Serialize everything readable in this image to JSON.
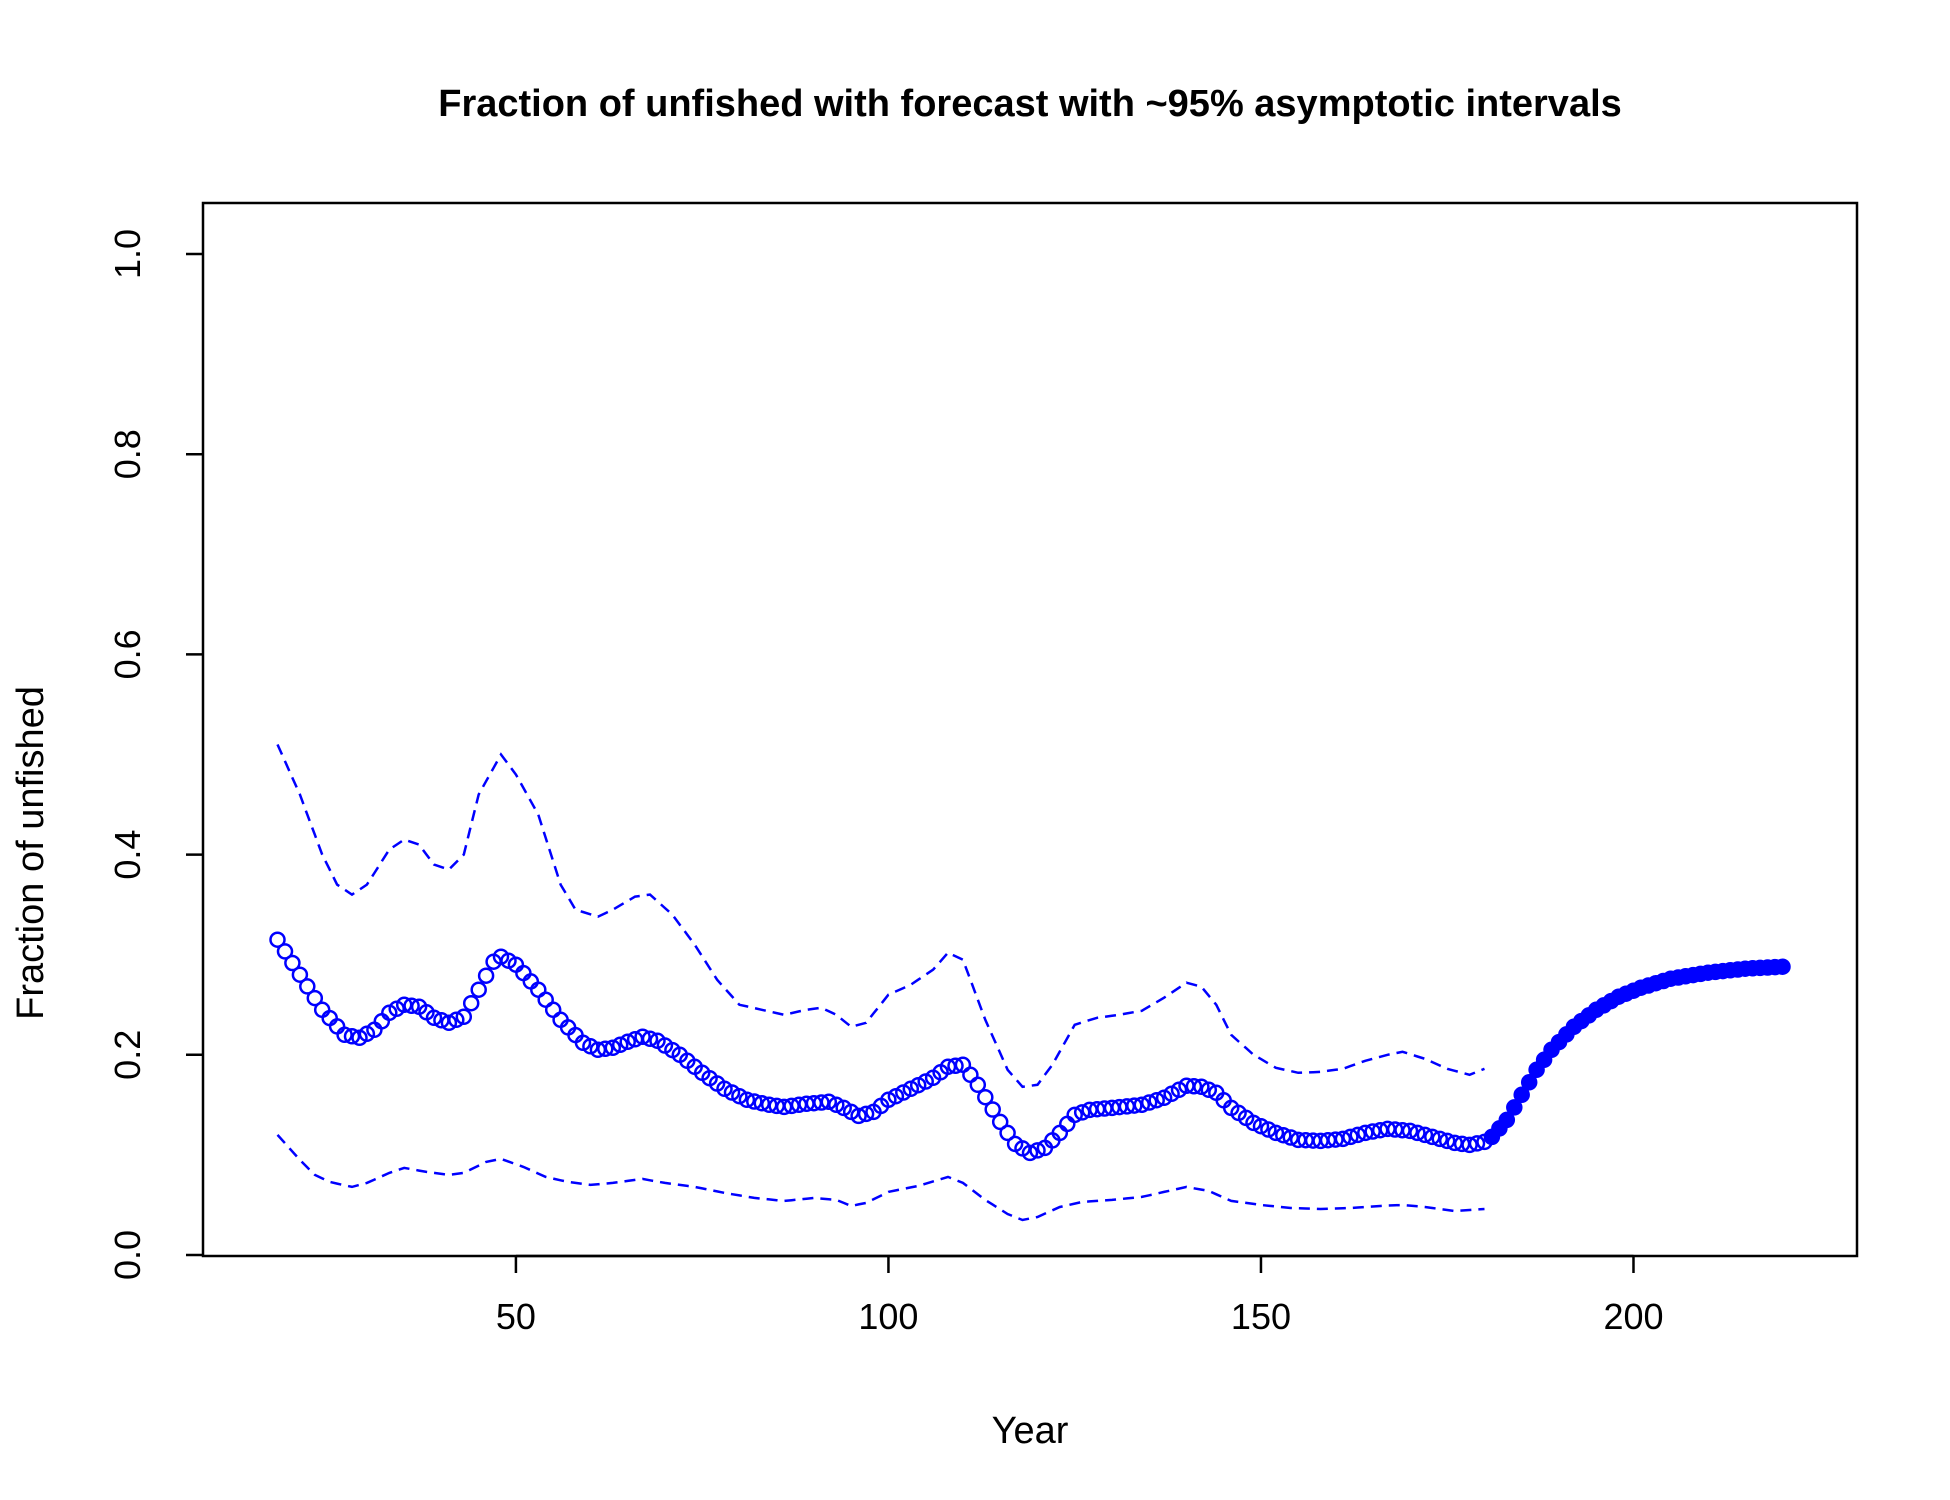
{
  "chart_data": {
    "type": "line",
    "title": "Fraction of unfished with forecast with ~95% asymptotic intervals",
    "xlabel": "Year",
    "ylabel": "Fraction of unfished",
    "xlim": [
      8,
      230
    ],
    "ylim": [
      0,
      1.05
    ],
    "x_ticks": [
      50,
      100,
      150,
      200
    ],
    "x_tick_labels": [
      "50",
      "100",
      "150",
      "200"
    ],
    "y_ticks": [
      0.0,
      0.2,
      0.4,
      0.6,
      0.8,
      1.0
    ],
    "y_tick_labels": [
      "0.0",
      "0.2",
      "0.4",
      "0.6",
      "0.8",
      "1.0"
    ],
    "grid": false,
    "colors": {
      "series": "#0000ff",
      "axis": "#000000"
    },
    "series": [
      {
        "style": "open-circles",
        "x_start": 18,
        "x_end": 180,
        "keypoints": [
          [
            18,
            0.315
          ],
          [
            21,
            0.28
          ],
          [
            24,
            0.245
          ],
          [
            27,
            0.22
          ],
          [
            29,
            0.217
          ],
          [
            31,
            0.225
          ],
          [
            33,
            0.242
          ],
          [
            35,
            0.25
          ],
          [
            37,
            0.248
          ],
          [
            39,
            0.237
          ],
          [
            41,
            0.232
          ],
          [
            43,
            0.238
          ],
          [
            45,
            0.265
          ],
          [
            47,
            0.293
          ],
          [
            48,
            0.298
          ],
          [
            50,
            0.29
          ],
          [
            53,
            0.265
          ],
          [
            56,
            0.235
          ],
          [
            59,
            0.212
          ],
          [
            61,
            0.205
          ],
          [
            63,
            0.207
          ],
          [
            65,
            0.213
          ],
          [
            67,
            0.218
          ],
          [
            69,
            0.214
          ],
          [
            72,
            0.2
          ],
          [
            75,
            0.182
          ],
          [
            78,
            0.166
          ],
          [
            81,
            0.155
          ],
          [
            84,
            0.15
          ],
          [
            86,
            0.148
          ],
          [
            89,
            0.151
          ],
          [
            92,
            0.153
          ],
          [
            94,
            0.147
          ],
          [
            96,
            0.139
          ],
          [
            98,
            0.143
          ],
          [
            100,
            0.155
          ],
          [
            103,
            0.166
          ],
          [
            106,
            0.177
          ],
          [
            108,
            0.188
          ],
          [
            110,
            0.19
          ],
          [
            112,
            0.17
          ],
          [
            115,
            0.133
          ],
          [
            117,
            0.111
          ],
          [
            119,
            0.102
          ],
          [
            121,
            0.107
          ],
          [
            123,
            0.122
          ],
          [
            125,
            0.14
          ],
          [
            127,
            0.145
          ],
          [
            130,
            0.147
          ],
          [
            134,
            0.15
          ],
          [
            137,
            0.157
          ],
          [
            140,
            0.169
          ],
          [
            142,
            0.168
          ],
          [
            144,
            0.162
          ],
          [
            146,
            0.147
          ],
          [
            149,
            0.132
          ],
          [
            152,
            0.122
          ],
          [
            155,
            0.115
          ],
          [
            158,
            0.114
          ],
          [
            161,
            0.116
          ],
          [
            164,
            0.122
          ],
          [
            167,
            0.126
          ],
          [
            170,
            0.124
          ],
          [
            173,
            0.118
          ],
          [
            176,
            0.112
          ],
          [
            178,
            0.11
          ],
          [
            180,
            0.113
          ]
        ]
      },
      {
        "style": "filled-circles",
        "x_start": 181,
        "x_end": 220,
        "keypoints": [
          [
            181,
            0.118
          ],
          [
            183,
            0.135
          ],
          [
            185,
            0.16
          ],
          [
            187,
            0.185
          ],
          [
            189,
            0.205
          ],
          [
            192,
            0.228
          ],
          [
            195,
            0.245
          ],
          [
            198,
            0.258
          ],
          [
            201,
            0.267
          ],
          [
            205,
            0.276
          ],
          [
            210,
            0.282
          ],
          [
            215,
            0.286
          ],
          [
            220,
            0.288
          ]
        ]
      },
      {
        "style": "dashed",
        "x_start": 18,
        "x_end": 180,
        "keypoints": [
          [
            18,
            0.51
          ],
          [
            21,
            0.46
          ],
          [
            24,
            0.4
          ],
          [
            26,
            0.37
          ],
          [
            28,
            0.36
          ],
          [
            30,
            0.37
          ],
          [
            33,
            0.405
          ],
          [
            35,
            0.415
          ],
          [
            37,
            0.41
          ],
          [
            39,
            0.39
          ],
          [
            41,
            0.385
          ],
          [
            43,
            0.4
          ],
          [
            45,
            0.46
          ],
          [
            48,
            0.5
          ],
          [
            50,
            0.48
          ],
          [
            53,
            0.44
          ],
          [
            56,
            0.37
          ],
          [
            58,
            0.345
          ],
          [
            61,
            0.338
          ],
          [
            63,
            0.345
          ],
          [
            66,
            0.358
          ],
          [
            68,
            0.36
          ],
          [
            71,
            0.34
          ],
          [
            74,
            0.31
          ],
          [
            77,
            0.275
          ],
          [
            80,
            0.25
          ],
          [
            83,
            0.245
          ],
          [
            86,
            0.24
          ],
          [
            89,
            0.245
          ],
          [
            91,
            0.247
          ],
          [
            93,
            0.24
          ],
          [
            95,
            0.228
          ],
          [
            97,
            0.232
          ],
          [
            100,
            0.26
          ],
          [
            103,
            0.27
          ],
          [
            106,
            0.285
          ],
          [
            108,
            0.302
          ],
          [
            110,
            0.295
          ],
          [
            113,
            0.235
          ],
          [
            116,
            0.185
          ],
          [
            118,
            0.168
          ],
          [
            120,
            0.17
          ],
          [
            122,
            0.19
          ],
          [
            125,
            0.23
          ],
          [
            128,
            0.237
          ],
          [
            131,
            0.24
          ],
          [
            134,
            0.244
          ],
          [
            137,
            0.257
          ],
          [
            140,
            0.272
          ],
          [
            142,
            0.268
          ],
          [
            144,
            0.25
          ],
          [
            146,
            0.22
          ],
          [
            149,
            0.2
          ],
          [
            152,
            0.187
          ],
          [
            155,
            0.182
          ],
          [
            158,
            0.183
          ],
          [
            161,
            0.186
          ],
          [
            164,
            0.194
          ],
          [
            167,
            0.2
          ],
          [
            169,
            0.203
          ],
          [
            172,
            0.196
          ],
          [
            175,
            0.186
          ],
          [
            178,
            0.18
          ],
          [
            180,
            0.186
          ]
        ]
      },
      {
        "style": "dashed",
        "x_start": 18,
        "x_end": 180,
        "keypoints": [
          [
            18,
            0.12
          ],
          [
            21,
            0.095
          ],
          [
            23,
            0.08
          ],
          [
            25,
            0.073
          ],
          [
            28,
            0.068
          ],
          [
            30,
            0.072
          ],
          [
            33,
            0.082
          ],
          [
            35,
            0.087
          ],
          [
            38,
            0.083
          ],
          [
            41,
            0.08
          ],
          [
            43,
            0.082
          ],
          [
            46,
            0.093
          ],
          [
            48,
            0.096
          ],
          [
            51,
            0.088
          ],
          [
            54,
            0.078
          ],
          [
            57,
            0.073
          ],
          [
            60,
            0.07
          ],
          [
            63,
            0.072
          ],
          [
            67,
            0.076
          ],
          [
            70,
            0.072
          ],
          [
            74,
            0.068
          ],
          [
            78,
            0.062
          ],
          [
            82,
            0.057
          ],
          [
            86,
            0.054
          ],
          [
            90,
            0.057
          ],
          [
            93,
            0.055
          ],
          [
            95,
            0.049
          ],
          [
            97,
            0.052
          ],
          [
            100,
            0.063
          ],
          [
            104,
            0.069
          ],
          [
            108,
            0.078
          ],
          [
            110,
            0.072
          ],
          [
            113,
            0.055
          ],
          [
            116,
            0.041
          ],
          [
            118,
            0.035
          ],
          [
            120,
            0.038
          ],
          [
            123,
            0.048
          ],
          [
            126,
            0.053
          ],
          [
            130,
            0.055
          ],
          [
            134,
            0.058
          ],
          [
            137,
            0.063
          ],
          [
            140,
            0.068
          ],
          [
            143,
            0.064
          ],
          [
            146,
            0.054
          ],
          [
            150,
            0.05
          ],
          [
            154,
            0.047
          ],
          [
            158,
            0.046
          ],
          [
            162,
            0.047
          ],
          [
            166,
            0.049
          ],
          [
            169,
            0.05
          ],
          [
            172,
            0.048
          ],
          [
            176,
            0.044
          ],
          [
            180,
            0.046
          ]
        ]
      }
    ]
  }
}
